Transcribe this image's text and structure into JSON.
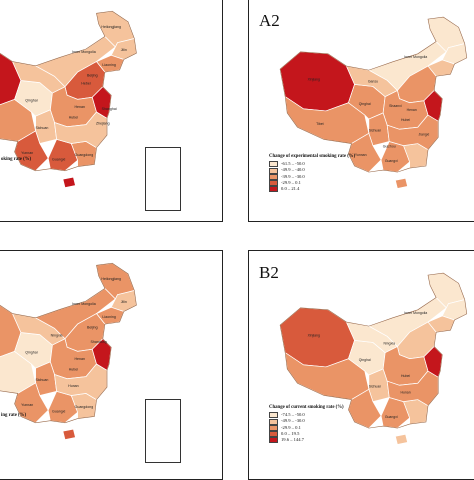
{
  "palette": {
    "c1": "#fbe7cf",
    "c2": "#f5c39c",
    "c3": "#ea9466",
    "c4": "#d85a3c",
    "c5": "#c4161c"
  },
  "panels": [
    {
      "id": "A1",
      "label": "",
      "legend_title_partial": "oking rate (%)",
      "colors": {
        "xinjiang": "c5",
        "tibet": "c3",
        "qinghai": "c1",
        "gansu": "c2",
        "neimenggu": "c2",
        "heilongjiang": "c2",
        "jilin": "c2",
        "liaoning": "c3",
        "north": "c4",
        "central": "c3",
        "sichuan": "c2",
        "yunnan": "c4",
        "guangxi": "c4",
        "guangdong": "c3",
        "southeast": "c2",
        "jiangsu": "c5",
        "hainan": "c5"
      },
      "provinces": [
        "Heilongjiang",
        "Inner Mongolia",
        "Jilin",
        "Liaoning",
        "Qinghai",
        "Beijing",
        "Hebei",
        "Henan",
        "Hubei",
        "Sichuan",
        "Yunnan",
        "Guangxi",
        "Guangdong",
        "Zhejiang",
        "Shanghai"
      ]
    },
    {
      "id": "A2",
      "label": "A2",
      "legend": {
        "title": "Change of experimental smoking rate (%)",
        "items": [
          {
            "range": "-61.5 – -50.0",
            "color": "c1"
          },
          {
            "range": "-49.9 – -40.0",
            "color": "c2"
          },
          {
            "range": "-39.9 – -30.0",
            "color": "c3"
          },
          {
            "range": "-29.9 – 0.1",
            "color": "c4"
          },
          {
            "range": "0.0 – 21.4",
            "color": "c5"
          }
        ]
      },
      "colors": {
        "xinjiang": "c5",
        "tibet": "c3",
        "qinghai": "c3",
        "gansu": "c2",
        "neimenggu": "c1",
        "heilongjiang": "c1",
        "jilin": "c1",
        "liaoning": "c2",
        "north": "c3",
        "central": "c3",
        "sichuan": "c3",
        "yunnan": "c3",
        "guangxi": "c3",
        "guangdong": "c2",
        "southeast": "c3",
        "jiangsu": "c5",
        "hainan": "c3"
      },
      "provinces": [
        "Inner Mongolia",
        "Xinjiang",
        "Tibet",
        "Qinghai",
        "Gansu",
        "Shaanxi",
        "Hubei",
        "Henan",
        "Sichuan",
        "Guizhou",
        "Yunnan",
        "Guangxi",
        "Jiangxi"
      ]
    },
    {
      "id": "B1",
      "label": "",
      "legend_title_partial": "ing rate (%)",
      "colors": {
        "xinjiang": "c3",
        "tibet": "c1",
        "qinghai": "c1",
        "gansu": "c2",
        "neimenggu": "c3",
        "heilongjiang": "c3",
        "jilin": "c2",
        "liaoning": "c3",
        "north": "c3",
        "central": "c3",
        "sichuan": "c3",
        "yunnan": "c3",
        "guangxi": "c3",
        "guangdong": "c2",
        "southeast": "c2",
        "jiangsu": "c5",
        "hainan": "c4"
      },
      "provinces": [
        "Heilongjiang",
        "Inner Mongolia",
        "Jilin",
        "Liaoning",
        "Qinghai",
        "Ningxia",
        "Beijing",
        "Shandong",
        "Henan",
        "Hubei",
        "Sichuan",
        "Hunan",
        "Yunnan",
        "Guangxi",
        "Guangdong"
      ]
    },
    {
      "id": "B2",
      "label": "B2",
      "legend": {
        "title": "Change of current smoking rate (%)",
        "items": [
          {
            "range": "-74.5 – -50.0",
            "color": "c1"
          },
          {
            "range": "-49.9 – -30.0",
            "color": "c2"
          },
          {
            "range": "-29.9 – 0.1",
            "color": "c3"
          },
          {
            "range": "0.0 – 19.5",
            "color": "c4"
          },
          {
            "range": "19.6 – 144.7",
            "color": "c5"
          }
        ]
      },
      "colors": {
        "xinjiang": "c4",
        "tibet": "c3",
        "qinghai": "c1",
        "gansu": "c1",
        "neimenggu": "c1",
        "heilongjiang": "c1",
        "jilin": "c1",
        "liaoning": "c2",
        "north": "c2",
        "central": "c3",
        "sichuan": "c2",
        "yunnan": "c3",
        "guangxi": "c3",
        "guangdong": "c2",
        "southeast": "c3",
        "jiangsu": "c5",
        "hainan": "c2"
      },
      "provinces": [
        "Inner Mongolia",
        "Xinjiang",
        "Qinghai",
        "Ningxia",
        "Hubei",
        "Sichuan",
        "Hunan",
        "Guangxi"
      ]
    }
  ]
}
